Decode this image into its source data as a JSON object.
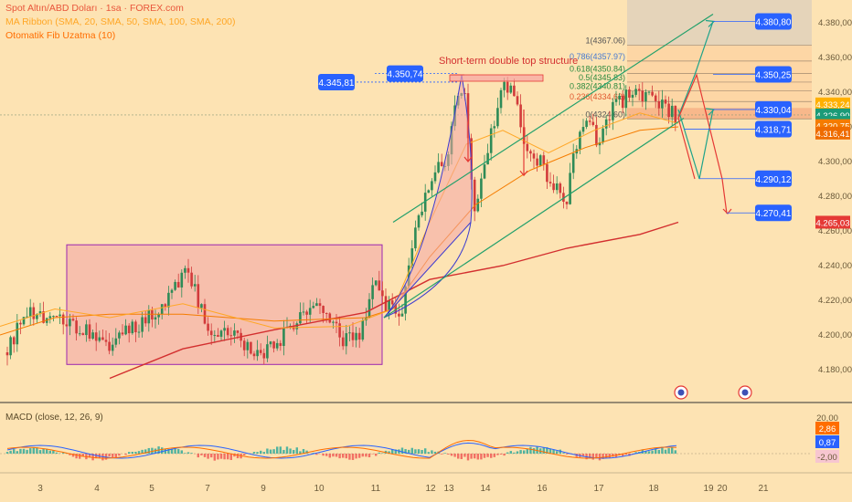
{
  "header": {
    "symbol_line": "Spot Altın/ABD Doları · 1sa · FOREX.com",
    "ribbon_line": "MA Ribbon (SMA, 20, SMA, 50, SMA, 100, SMA, 200)",
    "fib_line": "Otomatik Fib Uzatma (10)"
  },
  "annotation": {
    "text": "Short-term double top structure"
  },
  "macd": {
    "label": "MACD (close, 12, 26, 9)"
  },
  "colors": {
    "background": "#fde3b3",
    "up_candle": "#2e8b57",
    "down_candle": "#d23b3b",
    "ribbon_fast": "#ffa726",
    "ribbon_mid": "#f57c00",
    "ribbon_slow": "#d32f2f",
    "trend_line": "#22a06b",
    "projection_up": "#1ea38a",
    "projection_down": "#e53935",
    "label_blue": "#2962ff",
    "range_box_fill": "#f4a6a6",
    "range_box_border": "#9c27b0",
    "fib_zone": "#fcd0a0"
  },
  "chart_data": {
    "type": "candlestick",
    "title": "Spot Altın/ABD Doları · 1sa · FOREX.com",
    "x_tick_labels": [
      "3",
      "4",
      "5",
      "7",
      "9",
      "10",
      "11",
      "12",
      "13",
      "14",
      "16",
      "17",
      "18",
      "19",
      "20",
      "21"
    ],
    "y_tick_labels": [
      "4.380,00",
      "4.360,00",
      "4.340,00",
      "4.320,00",
      "4.300,00",
      "4.280,00",
      "4.260,00",
      "4.240,00",
      "4.220,00",
      "4.200,00",
      "4.180,00"
    ],
    "ylim": [
      4175,
      4395
    ],
    "price_labels": [
      {
        "text": "4.333,24",
        "value": 4333.24,
        "color": "#ffb000"
      },
      {
        "text": "4.326,90",
        "value": 4326.9,
        "color": "#1a9b78"
      },
      {
        "text": "22:31",
        "value": 4322.6,
        "color": "#1a9b78"
      },
      {
        "text": "4.320,75",
        "value": 4320.75,
        "color": "#f57c00"
      },
      {
        "text": "4.316,41",
        "value": 4316.41,
        "color": "#ef6c00"
      },
      {
        "text": "4.265,03",
        "value": 4265.03,
        "color": "#e53935"
      }
    ],
    "level_labels": [
      {
        "text": "4.380,80",
        "value": 4380.8
      },
      {
        "text": "4.350,25",
        "value": 4350.25
      },
      {
        "text": "4.330,04",
        "value": 4330.04
      },
      {
        "text": "4.318,71",
        "value": 4318.71
      },
      {
        "text": "4.290,12",
        "value": 4290.12
      },
      {
        "text": "4.270,41",
        "value": 4270.41
      },
      {
        "text": "4.350,74",
        "value": 4350.74
      },
      {
        "text": "4.345,81",
        "value": 4345.81
      }
    ],
    "fib_levels": [
      {
        "label": "1(4367.06)",
        "value": 4367.06
      },
      {
        "label": "0.786(4357.97)",
        "value": 4357.97
      },
      {
        "label": "0.618(4350.84)",
        "value": 4350.84
      },
      {
        "label": "0.5(4345.83)",
        "value": 4345.83
      },
      {
        "label": "0.382(4340.81)",
        "value": 4340.81
      },
      {
        "label": "0.236(4334.62)",
        "value": 4334.62
      },
      {
        "label": "0(4324.60)",
        "value": 4324.6
      }
    ],
    "projections_up": [
      {
        "from": [
          4327,
          4331
        ],
        "to": [
          4380.8
        ]
      },
      {
        "from": [
          4330
        ],
        "to": [
          4350.25
        ]
      }
    ],
    "projections_down": [
      {
        "from": [
          4350
        ],
        "to": [
          4290.12
        ]
      },
      {
        "from": [
          4330
        ],
        "to": [
          4270.41
        ]
      }
    ],
    "consolidation_range": {
      "low": 4183,
      "high": 4252
    },
    "macd_axis": [
      {
        "text": "20,00",
        "value": 20
      },
      {
        "text": "2,86",
        "value": 2.86
      },
      {
        "text": "0,87",
        "value": 0.87
      },
      {
        "text": "-2,00",
        "value": -2
      }
    ]
  }
}
